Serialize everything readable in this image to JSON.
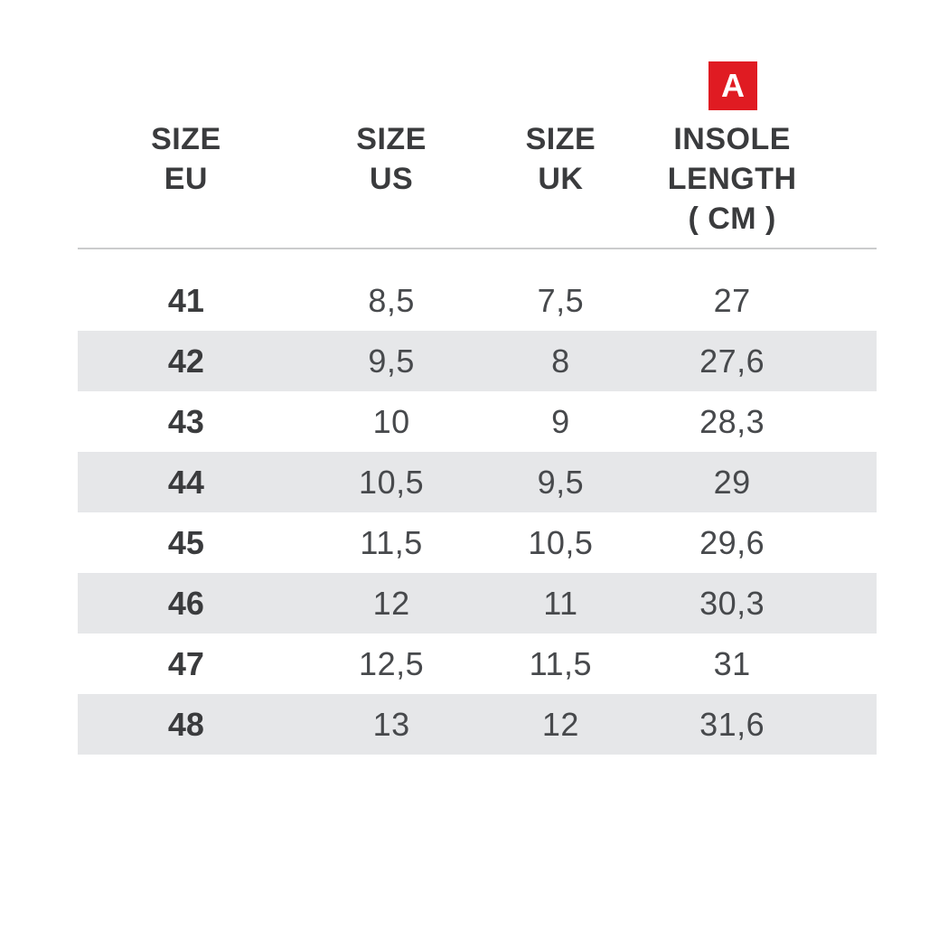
{
  "badge": {
    "label": "A",
    "color": "#e01b22"
  },
  "table": {
    "stripe_color": "#e6e7e9",
    "divider_color": "#cbcccd",
    "header_text_color": "#3a3b3d",
    "value_text_color": "#47494c",
    "columns": {
      "eu": {
        "line1": "SIZE",
        "line2": "EU"
      },
      "us": {
        "line1": "SIZE",
        "line2": "US"
      },
      "uk": {
        "line1": "SIZE",
        "line2": "UK"
      },
      "insole": {
        "line1": "INSOLE",
        "line2": "LENGTH",
        "line3": "( CM )"
      }
    },
    "rows": [
      {
        "eu": "41",
        "us": "8,5",
        "uk": "7,5",
        "insole": "27"
      },
      {
        "eu": "42",
        "us": "9,5",
        "uk": "8",
        "insole": "27,6"
      },
      {
        "eu": "43",
        "us": "10",
        "uk": "9",
        "insole": "28,3"
      },
      {
        "eu": "44",
        "us": "10,5",
        "uk": "9,5",
        "insole": "29"
      },
      {
        "eu": "45",
        "us": "11,5",
        "uk": "10,5",
        "insole": "29,6"
      },
      {
        "eu": "46",
        "us": "12",
        "uk": "11",
        "insole": "30,3"
      },
      {
        "eu": "47",
        "us": "12,5",
        "uk": "11,5",
        "insole": "31"
      },
      {
        "eu": "48",
        "us": "13",
        "uk": "12",
        "insole": "31,6"
      }
    ]
  },
  "chart_data": {
    "type": "table",
    "title": "",
    "columns": [
      "SIZE EU",
      "SIZE US",
      "SIZE UK",
      "INSOLE LENGTH ( CM )"
    ],
    "rows": [
      [
        "41",
        "8,5",
        "7,5",
        "27"
      ],
      [
        "42",
        "9,5",
        "8",
        "27,6"
      ],
      [
        "43",
        "10",
        "9",
        "28,3"
      ],
      [
        "44",
        "10,5",
        "9,5",
        "29"
      ],
      [
        "45",
        "11,5",
        "10,5",
        "29,6"
      ],
      [
        "46",
        "12",
        "11",
        "30,3"
      ],
      [
        "47",
        "12,5",
        "11,5",
        "31"
      ],
      [
        "48",
        "13",
        "12",
        "31,6"
      ]
    ],
    "annotations": [
      {
        "label": "A",
        "applies_to_column": "INSOLE LENGTH ( CM )",
        "style": "red-square-badge"
      }
    ],
    "layout": {
      "striped_rows": "even rows shaded light gray",
      "header_divider": true
    }
  }
}
